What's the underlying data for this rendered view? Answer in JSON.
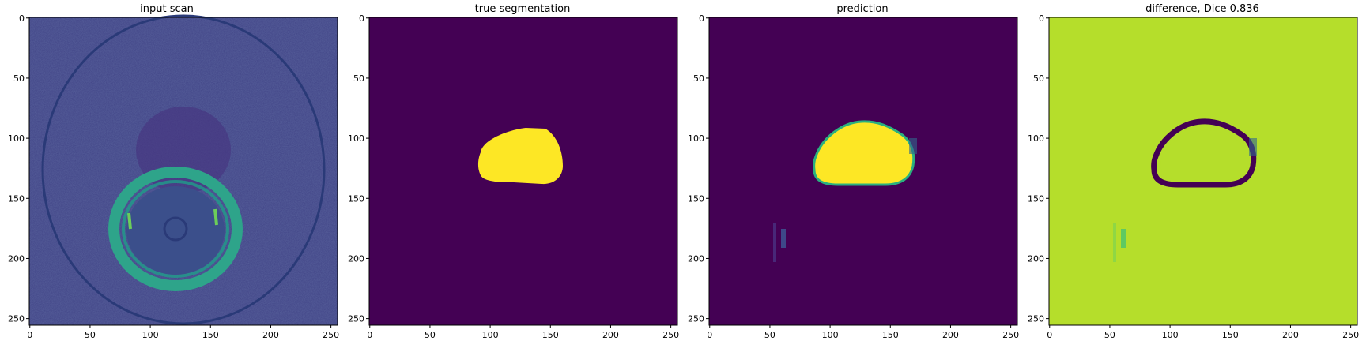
{
  "figure": {
    "panels": [
      {
        "title": "input scan",
        "kind": "scan"
      },
      {
        "title": "true segmentation",
        "kind": "truth"
      },
      {
        "title": "prediction",
        "kind": "pred"
      },
      {
        "title": "difference, Dice 0.836",
        "kind": "diff"
      }
    ],
    "axis": {
      "x_ticks": [
        "0",
        "50",
        "100",
        "150",
        "200",
        "250"
      ],
      "y_ticks": [
        "0",
        "50",
        "100",
        "150",
        "200",
        "250"
      ]
    },
    "colors": {
      "viridis_dark": "#440154",
      "viridis_yellow": "#fde725",
      "viridis_teal": "#21918c",
      "viridis_green": "#b5de2b",
      "scan_bg": "#3b528b"
    }
  }
}
